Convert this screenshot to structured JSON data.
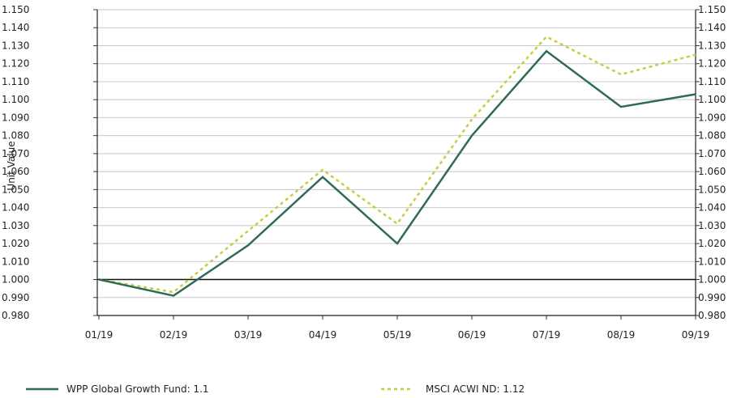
{
  "chart_data": {
    "type": "line",
    "categories": [
      "01/19",
      "02/19",
      "03/19",
      "04/19",
      "05/19",
      "06/19",
      "07/19",
      "08/19",
      "09/19"
    ],
    "series": [
      {
        "name": "WPP Global Growth Fund: 1.1",
        "values": [
          1.0,
          0.991,
          1.019,
          1.057,
          1.02,
          1.08,
          1.127,
          1.096,
          1.103
        ],
        "color": "#2e6b57",
        "style": "solid"
      },
      {
        "name": "MSCI ACWI ND: 1.12",
        "values": [
          1.0,
          0.993,
          1.027,
          1.061,
          1.031,
          1.089,
          1.135,
          1.114,
          1.125
        ],
        "color": "#c9cc3f",
        "style": "dotted"
      }
    ],
    "ylabel": "Unit Value",
    "ylim": [
      0.98,
      1.15
    ],
    "yticks": [
      "0.980",
      "0.990",
      "1.000",
      "1.010",
      "1.020",
      "1.030",
      "1.040",
      "1.050",
      "1.060",
      "1.070",
      "1.080",
      "1.090",
      "1.100",
      "1.110",
      "1.120",
      "1.130",
      "1.140",
      "1.150"
    ],
    "grid": true,
    "baseline": 1.0,
    "legend_position": "bottom"
  }
}
